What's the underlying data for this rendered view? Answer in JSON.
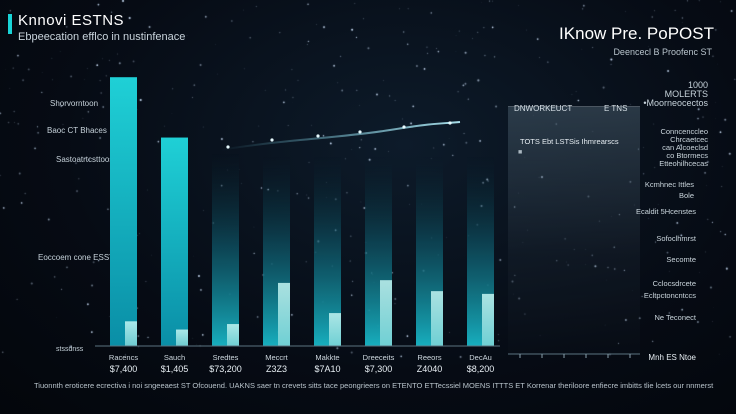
{
  "header": {
    "title": "Knnovi ESTNS",
    "subtitle": "Ebpeecation efflco in nustinfenace",
    "right_title": "IKnow Pre. PoPOST",
    "right_subtitle": "Deencecl B Proofenc ST",
    "right_stat_line1": "1000",
    "right_stat_line2": "MOLERTS",
    "right_stat_line3": "•Moorneocectos"
  },
  "y_labels": [
    "Shorvorntoon",
    "Baoc CT Bhaces",
    "Sastoatrtcsttoos",
    "Eoccoem cone ESST"
  ],
  "panel": {
    "header_left": "DNWORKEUCT",
    "header_right": "E TNS",
    "text": "TOTS Ebt   LSTSis Ihmrearscs",
    "marker": "■"
  },
  "annotations": [
    "Conncenccleo",
    "Chrcaetcec",
    "can Alcoeclsd",
    "co Btormecs",
    "Etteohilhcecas",
    "Kcmhnec Ittles",
    "Bole",
    "Ecaldit 5Hcenstes",
    "Sofoclhmrst",
    "Secomte",
    "Cclocsdrcete",
    "Ecltpctoncntccs",
    "Ne Teconect"
  ],
  "axis_label": "stssdnss",
  "corner_label": "Mnh ES Ntoe",
  "caption": "Tiuonnth eroticere ecrectiva i noi sngeeaest ST Ofcouend. UAKNS saer tn crevets sitts tace peongrieers on ETENTO ETTecssiel MOENS ITTTS ET Korrenar theriloore enfiecre imbitts tlie lcets our nnmerst te esnohsovr?",
  "colors": {
    "accent": "#19d3d6",
    "bar_top": "#1ec8d0",
    "bar_light": "#bff5f2"
  },
  "chart_data": {
    "type": "bar",
    "categories": [
      "Racencs",
      "Sauch",
      "Sredtes",
      "Meccrt",
      "Makkte",
      "Dreeceits",
      "Reeors",
      "DecAu"
    ],
    "value_labels": [
      "$7,400",
      "$1,405",
      "$73,200",
      "Z3Z3",
      "$7A10",
      "$7,300",
      "Z4040",
      "$8,200"
    ],
    "series": [
      {
        "values": [
          9.8,
          7.6,
          7.0,
          6.9,
          6.9,
          6.9,
          6.9,
          6.9
        ]
      },
      {
        "values": [
          0.9,
          0.6,
          0.8,
          2.3,
          1.2,
          2.4,
          2.0,
          1.9
        ]
      }
    ],
    "ylim": [
      0,
      10.5
    ],
    "grid": false
  }
}
